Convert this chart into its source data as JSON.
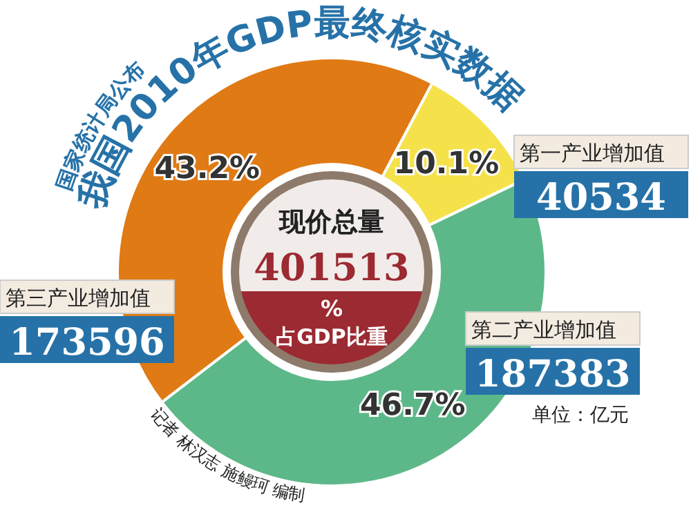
{
  "chart_data": {
    "type": "donut",
    "title": "我国2010年GDP最终核实数据",
    "subtitle": "国家统计局公布",
    "categories": [
      "第一产业增加值",
      "第二产业增加值",
      "第三产业增加值"
    ],
    "values": [
      10.1,
      46.7,
      43.2
    ],
    "colors": [
      "#f5e24a",
      "#5db889",
      "#e07a14"
    ],
    "value_labels": [
      "10.1%",
      "46.7%",
      "43.2%"
    ],
    "annotations": [
      "现价总量",
      "401513",
      "%",
      "占GDP比重",
      "单位：亿元",
      "记者 林汉志 施鳗珂 编制",
      "40534",
      "187383",
      "173596"
    ]
  }
}
